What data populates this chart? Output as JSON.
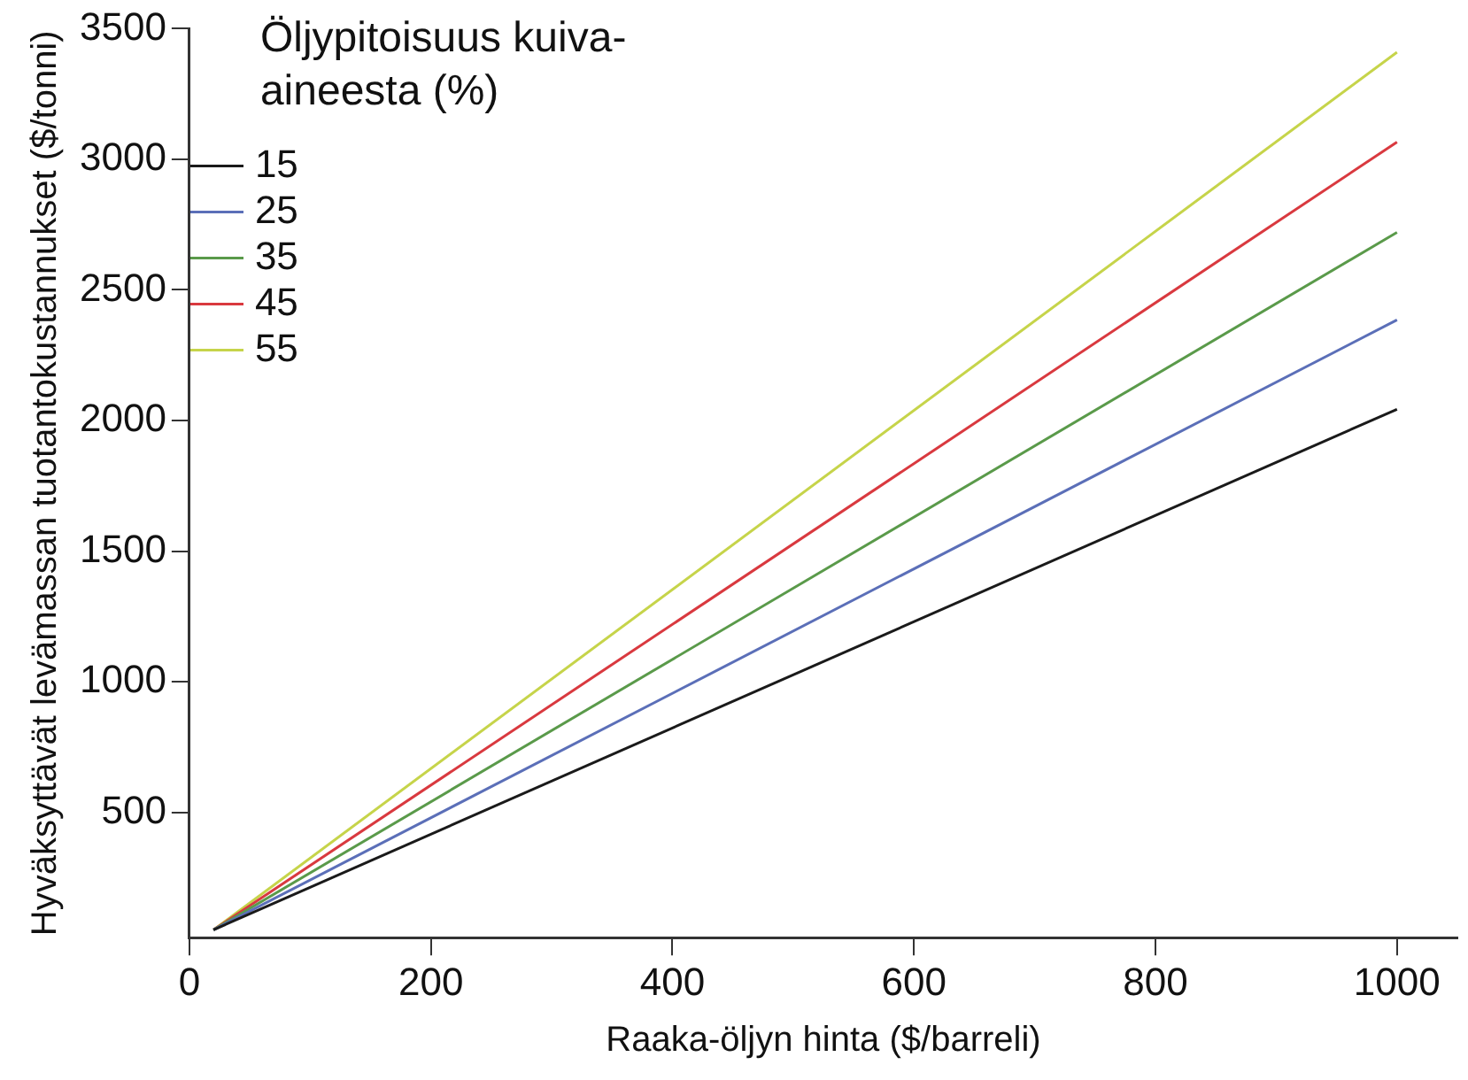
{
  "chart_data": {
    "type": "line",
    "xlabel": "Raaka-öljyn hinta ($/barreli)",
    "ylabel": "Hyväksyttävät levämassan tuotantokustannukset ($/tonni)",
    "legend_title": "Öljypitoisuus kuiva-aineesta (%)",
    "x": [
      20,
      1000
    ],
    "series": [
      {
        "name": "15",
        "color": "#1a1a1a",
        "values": [
          50,
          2043
        ]
      },
      {
        "name": "25",
        "color": "#5b6fb8",
        "values": [
          50,
          2385
        ]
      },
      {
        "name": "35",
        "color": "#5a9a4a",
        "values": [
          50,
          2720
        ]
      },
      {
        "name": "45",
        "color": "#d9393f",
        "values": [
          50,
          3066
        ]
      },
      {
        "name": "55",
        "color": "#c6d44a",
        "values": [
          50,
          3410
        ]
      }
    ],
    "xlim": [
      0,
      1050
    ],
    "ylim": [
      20,
      3500
    ],
    "xticks": [
      0,
      200,
      400,
      600,
      800,
      1000
    ],
    "yticks": [
      500,
      1000,
      1500,
      2000,
      2500,
      3000,
      3500
    ],
    "grid": false,
    "legend": "top left",
    "line_style": "solid",
    "marker": "none"
  }
}
